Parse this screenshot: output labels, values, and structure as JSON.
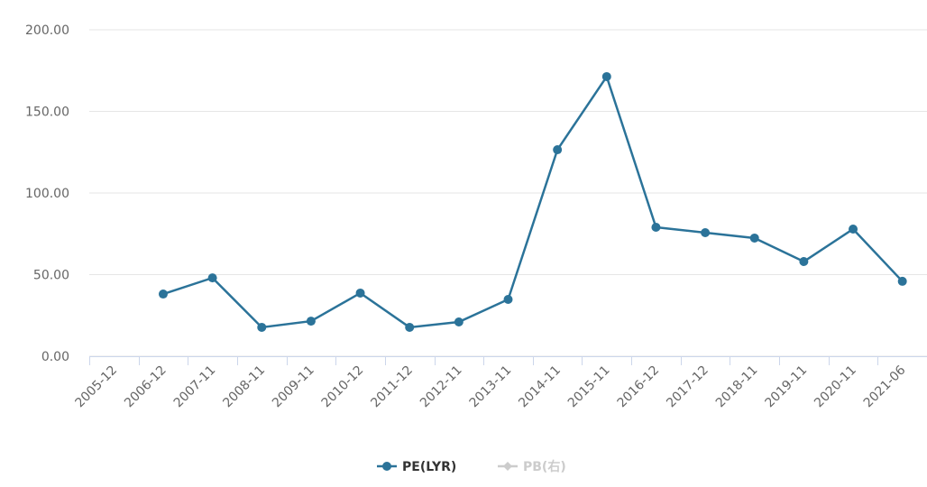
{
  "chart_data": {
    "type": "line",
    "categories": [
      "2005-12",
      "2006-12",
      "2007-11",
      "2008-11",
      "2009-11",
      "2010-12",
      "2011-12",
      "2012-11",
      "2013-11",
      "2014-11",
      "2015-11",
      "2016-12",
      "2017-12",
      "2018-11",
      "2019-11",
      "2020-11",
      "2021-06"
    ],
    "series": [
      {
        "name": "PE(LYR)",
        "color": "#2b7399",
        "values": [
          null,
          38.1,
          48.0,
          17.7,
          21.5,
          38.7,
          17.7,
          21.0,
          34.8,
          126.5,
          171.3,
          79.0,
          75.7,
          72.4,
          58.0,
          77.9,
          45.9
        ]
      },
      {
        "name": "PB(右)",
        "color": "#cccccc",
        "hidden": true,
        "values": [
          null,
          null,
          null,
          null,
          null,
          null,
          null,
          null,
          null,
          null,
          null,
          null,
          null,
          null,
          null,
          null,
          null
        ]
      }
    ],
    "ylim": [
      0,
      200
    ],
    "yticks": [
      {
        "value": 0,
        "label": "0.00"
      },
      {
        "value": 50,
        "label": "50.00"
      },
      {
        "value": 100,
        "label": "100.00"
      },
      {
        "value": 150,
        "label": "150.00"
      },
      {
        "value": 200,
        "label": "200.00"
      }
    ],
    "grid": true,
    "legend": "bottom"
  }
}
